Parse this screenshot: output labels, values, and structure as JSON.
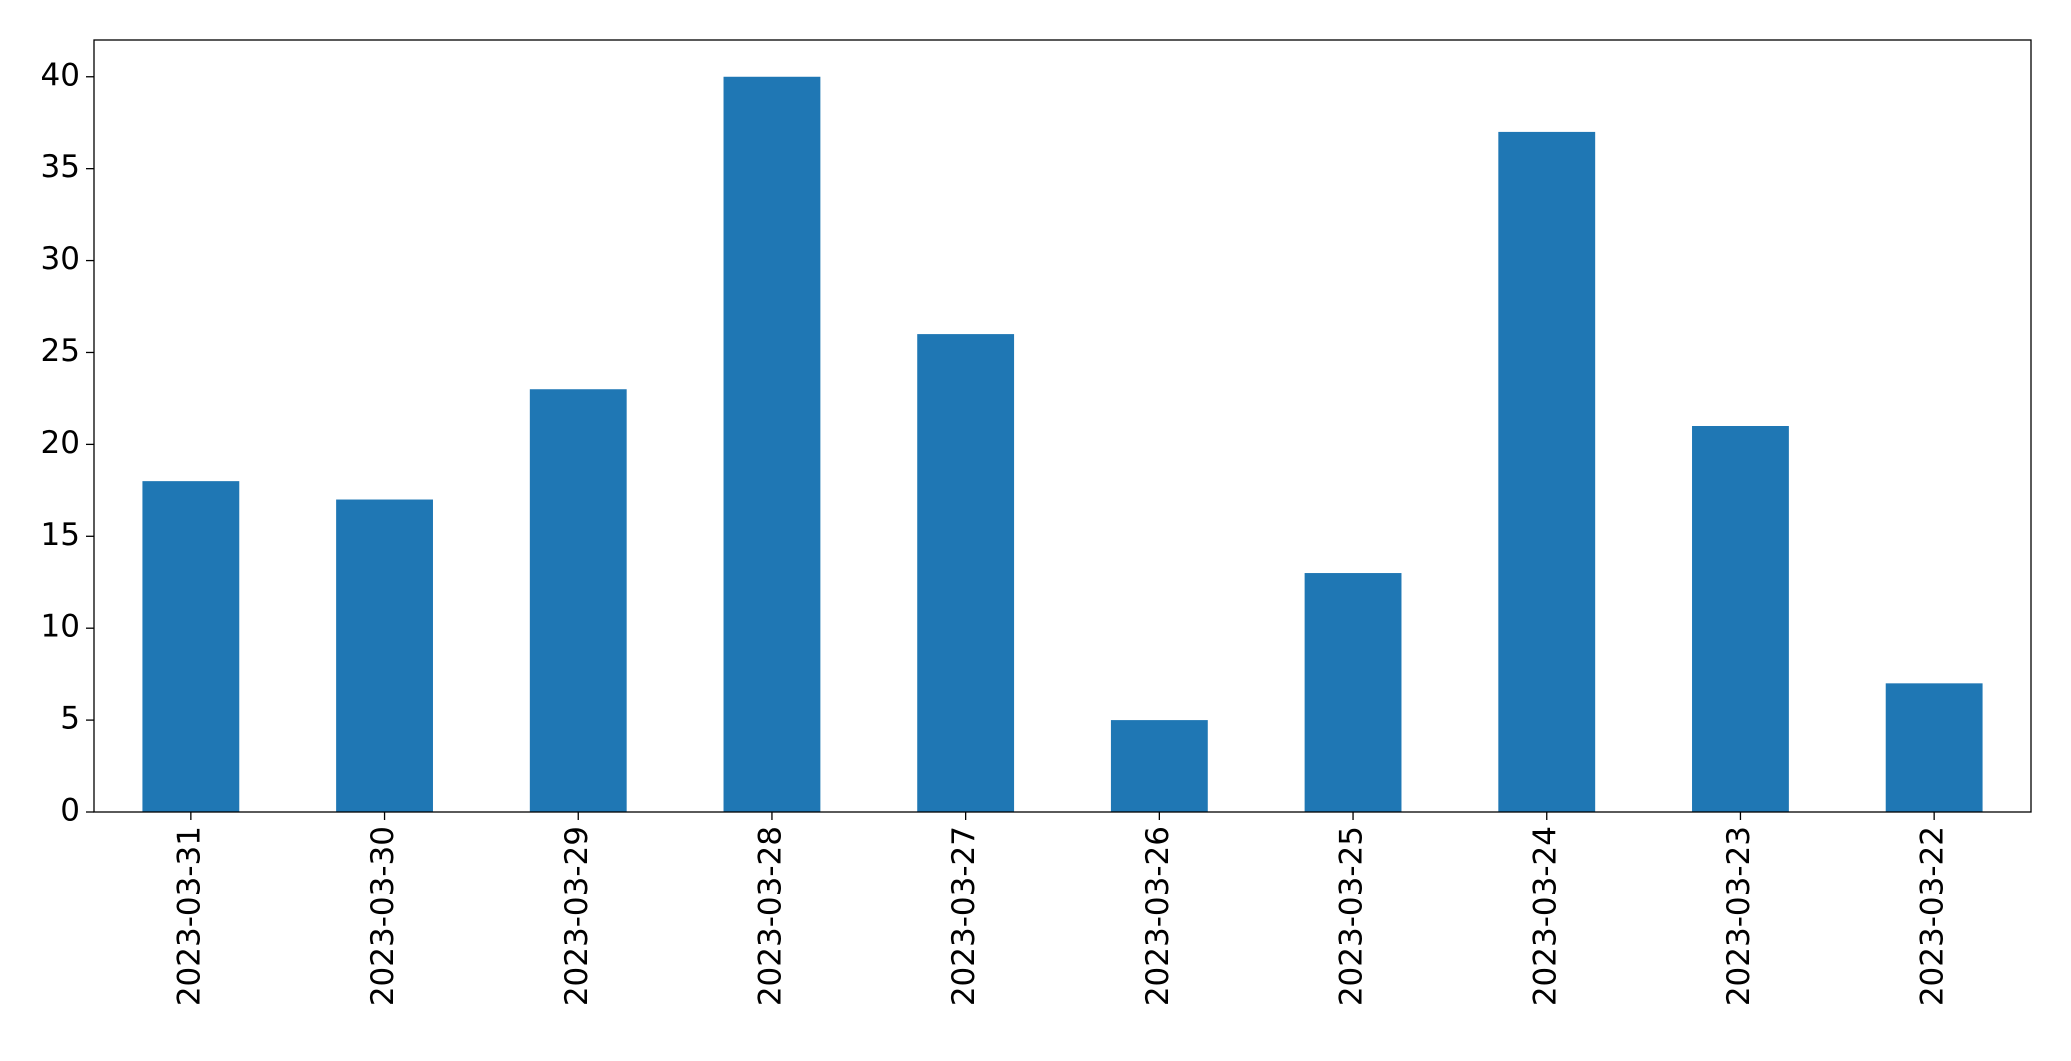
{
  "chart_data": {
    "type": "bar",
    "categories": [
      "2023-03-31",
      "2023-03-30",
      "2023-03-29",
      "2023-03-28",
      "2023-03-27",
      "2023-03-26",
      "2023-03-25",
      "2023-03-24",
      "2023-03-23",
      "2023-03-22"
    ],
    "values": [
      18,
      17,
      23,
      40,
      26,
      5,
      13,
      37,
      21,
      7
    ],
    "color": "#1f77b4",
    "ylim": [
      0,
      42
    ],
    "yticks": [
      0,
      5,
      10,
      15,
      20,
      25,
      30,
      35,
      40
    ],
    "grid": false
  }
}
